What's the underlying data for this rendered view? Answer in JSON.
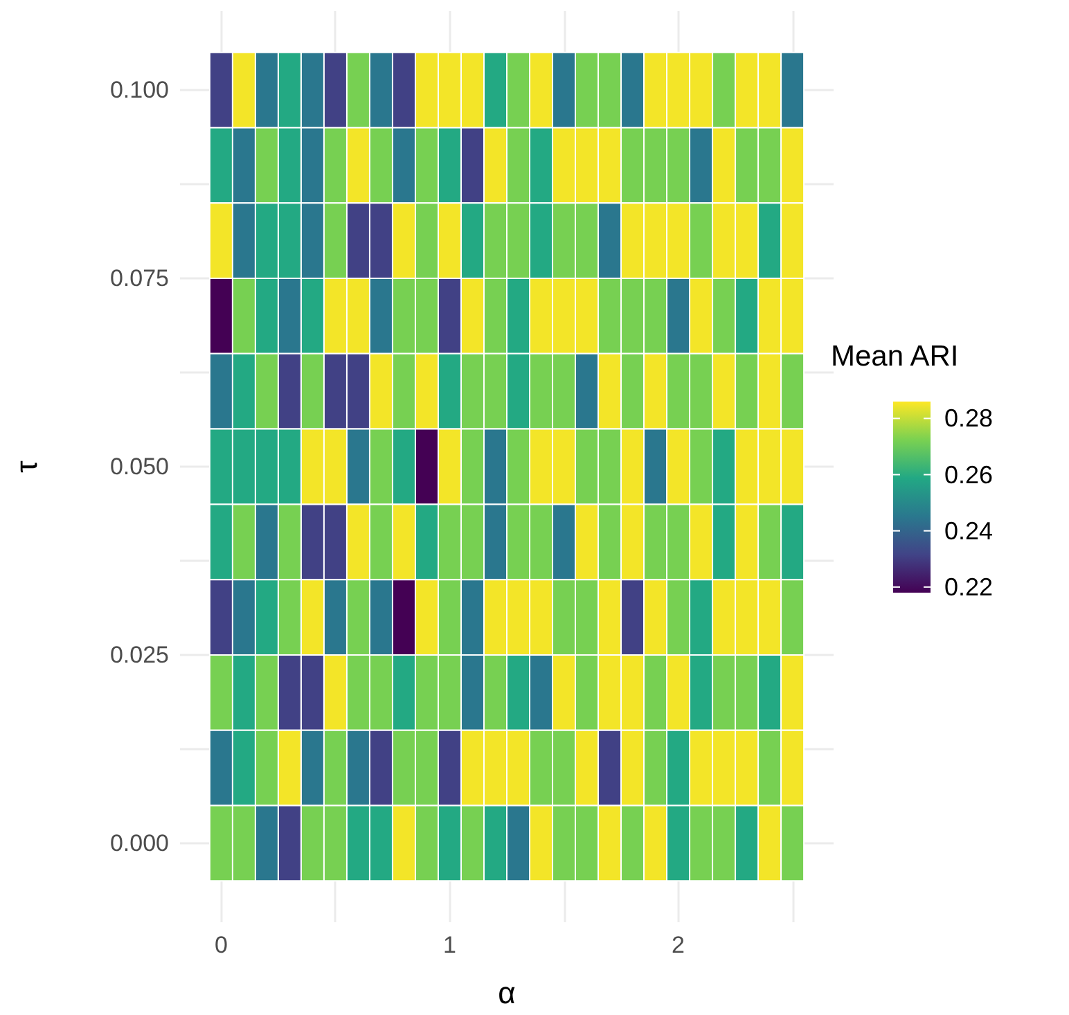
{
  "chart_data": {
    "type": "heatmap",
    "xlabel": "α",
    "ylabel": "τ",
    "clabel": "Mean ARI",
    "x": [
      0,
      0.1,
      0.2,
      0.3,
      0.4,
      0.5,
      0.6,
      0.7,
      0.8,
      0.9,
      1,
      1.1,
      1.2,
      1.3,
      1.4,
      1.5,
      1.6,
      1.7,
      1.8,
      1.9,
      2,
      2.1,
      2.2,
      2.3,
      2.4,
      2.5
    ],
    "y": [
      0.1,
      0.09,
      0.08,
      0.07,
      0.06,
      0.05,
      0.04,
      0.03,
      0.02,
      0.01,
      0
    ],
    "cells": [
      [
        0.231,
        0.285,
        0.245,
        0.259,
        0.245,
        0.231,
        0.272,
        0.245,
        0.231,
        0.285,
        0.285,
        0.285,
        0.259,
        0.272,
        0.285,
        0.245,
        0.272,
        0.272,
        0.245,
        0.285,
        0.285,
        0.285,
        0.272,
        0.285,
        0.285,
        0.245
      ],
      [
        0.259,
        0.245,
        0.272,
        0.259,
        0.245,
        0.272,
        0.285,
        0.272,
        0.245,
        0.272,
        0.259,
        0.231,
        0.285,
        0.272,
        0.259,
        0.285,
        0.285,
        0.285,
        0.272,
        0.272,
        0.272,
        0.245,
        0.285,
        0.272,
        0.272,
        0.285
      ],
      [
        0.285,
        0.245,
        0.259,
        0.259,
        0.245,
        0.272,
        0.231,
        0.231,
        0.285,
        0.272,
        0.285,
        0.259,
        0.272,
        0.272,
        0.259,
        0.272,
        0.272,
        0.245,
        0.285,
        0.285,
        0.285,
        0.272,
        0.285,
        0.285,
        0.259,
        0.285
      ],
      [
        0.218,
        0.272,
        0.259,
        0.245,
        0.259,
        0.285,
        0.285,
        0.245,
        0.272,
        0.272,
        0.231,
        0.285,
        0.272,
        0.259,
        0.285,
        0.285,
        0.285,
        0.272,
        0.272,
        0.272,
        0.245,
        0.285,
        0.272,
        0.259,
        0.285,
        0.285
      ],
      [
        0.245,
        0.259,
        0.272,
        0.231,
        0.272,
        0.231,
        0.231,
        0.285,
        0.272,
        0.285,
        0.259,
        0.272,
        0.272,
        0.259,
        0.272,
        0.272,
        0.245,
        0.285,
        0.272,
        0.285,
        0.272,
        0.272,
        0.285,
        0.272,
        0.285,
        0.272
      ],
      [
        0.259,
        0.259,
        0.259,
        0.259,
        0.285,
        0.285,
        0.245,
        0.272,
        0.259,
        0.218,
        0.285,
        0.272,
        0.245,
        0.272,
        0.285,
        0.285,
        0.272,
        0.272,
        0.285,
        0.245,
        0.285,
        0.272,
        0.259,
        0.285,
        0.285,
        0.285
      ],
      [
        0.259,
        0.272,
        0.245,
        0.272,
        0.231,
        0.231,
        0.285,
        0.272,
        0.285,
        0.259,
        0.272,
        0.272,
        0.245,
        0.272,
        0.272,
        0.245,
        0.285,
        0.272,
        0.285,
        0.272,
        0.272,
        0.285,
        0.259,
        0.285,
        0.272,
        0.259
      ],
      [
        0.231,
        0.245,
        0.259,
        0.272,
        0.285,
        0.245,
        0.272,
        0.245,
        0.218,
        0.285,
        0.272,
        0.245,
        0.285,
        0.285,
        0.285,
        0.272,
        0.272,
        0.285,
        0.231,
        0.285,
        0.272,
        0.259,
        0.285,
        0.285,
        0.285,
        0.272
      ],
      [
        0.272,
        0.259,
        0.272,
        0.231,
        0.231,
        0.285,
        0.272,
        0.272,
        0.259,
        0.272,
        0.272,
        0.245,
        0.272,
        0.259,
        0.245,
        0.285,
        0.272,
        0.285,
        0.285,
        0.272,
        0.285,
        0.259,
        0.272,
        0.272,
        0.259,
        0.285
      ],
      [
        0.245,
        0.259,
        0.272,
        0.285,
        0.245,
        0.272,
        0.245,
        0.231,
        0.272,
        0.272,
        0.231,
        0.285,
        0.285,
        0.285,
        0.272,
        0.272,
        0.285,
        0.231,
        0.285,
        0.272,
        0.259,
        0.285,
        0.285,
        0.285,
        0.272,
        0.285
      ],
      [
        0.272,
        0.272,
        0.245,
        0.231,
        0.272,
        0.272,
        0.259,
        0.259,
        0.285,
        0.272,
        0.259,
        0.272,
        0.259,
        0.245,
        0.285,
        0.272,
        0.272,
        0.285,
        0.272,
        0.285,
        0.259,
        0.272,
        0.272,
        0.259,
        0.285,
        0.272
      ]
    ],
    "xlim": [
      -0.18,
      2.68
    ],
    "ylim": [
      -0.0105,
      0.1105
    ],
    "xticks": [
      0,
      {
        "value": 0.5,
        "label": null
      },
      1,
      {
        "value": 1.5,
        "label": null
      },
      2,
      {
        "value": 2.5,
        "label": null
      }
    ],
    "yticks": [
      {
        "value": 0,
        "label": "0.000"
      },
      {
        "value": 0.0125,
        "label": null
      },
      {
        "value": 0.025,
        "label": "0.025"
      },
      {
        "value": 0.0375,
        "label": null
      },
      {
        "value": 0.05,
        "label": "0.050"
      },
      {
        "value": 0.0625,
        "label": null
      },
      {
        "value": 0.075,
        "label": "0.075"
      },
      {
        "value": 0.0875,
        "label": null
      },
      {
        "value": 0.1,
        "label": "0.100"
      }
    ],
    "clim": [
      0.218,
      0.286
    ],
    "cticks": [
      0.22,
      0.24,
      0.26,
      0.28
    ],
    "grid": true
  }
}
